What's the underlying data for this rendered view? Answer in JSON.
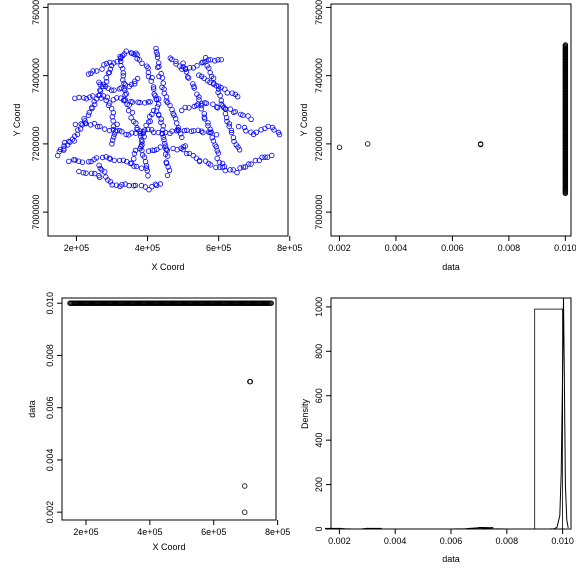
{
  "chart_data": [
    {
      "type": "scatter",
      "xlabel": "X Coord",
      "ylabel": "Y Coord",
      "xticks": [
        200000,
        400000,
        600000,
        800000
      ],
      "xtick_labels": [
        "2e+05",
        "4e+05",
        "6e+05",
        "8e+05"
      ],
      "yticks": [
        7000000,
        7200000,
        7400000,
        7600000
      ],
      "ytick_labels": [
        "7000000",
        "7200000",
        "7400000",
        "7600000"
      ],
      "xlim": [
        120000,
        795000
      ],
      "ylim": [
        6930000,
        7610000
      ],
      "point_color": "#0000ff",
      "description_points": "~700 station locations forming a network of roughly north–south and east–west lines across X 150000–780000, Y 7060000–7490000",
      "x_range_data": [
        150000,
        780000
      ],
      "y_range_data": [
        7060000,
        7490000
      ]
    },
    {
      "type": "scatter",
      "xlabel": "data",
      "ylabel": "Y Coord",
      "xticks": [
        0.002,
        0.004,
        0.006,
        0.008,
        0.01
      ],
      "xtick_labels": [
        "0.002",
        "0.004",
        "0.006",
        "0.008",
        "0.010"
      ],
      "yticks": [
        7000000,
        7200000,
        7400000,
        7600000
      ],
      "ytick_labels": [
        "7000000",
        "7200000",
        "7400000",
        "7600000"
      ],
      "xlim": [
        0.0017,
        0.0102
      ],
      "ylim": [
        6930000,
        7610000
      ],
      "point_color": "#000000",
      "points": [
        {
          "x": 0.002,
          "y": 7190000
        },
        {
          "x": 0.003,
          "y": 7200000
        },
        {
          "x": 0.007,
          "y": 7200000
        },
        {
          "x": 0.007,
          "y": 7198000
        }
      ],
      "main_cluster": {
        "x": 0.01,
        "y_range": [
          7055000,
          7490000
        ]
      }
    },
    {
      "type": "scatter",
      "xlabel": "X Coord",
      "ylabel": "data",
      "xticks": [
        200000,
        400000,
        600000,
        800000
      ],
      "xtick_labels": [
        "2e+05",
        "4e+05",
        "6e+05",
        "8e+05"
      ],
      "yticks": [
        0.002,
        0.004,
        0.006,
        0.008,
        0.01
      ],
      "ytick_labels": [
        "0.002",
        "0.004",
        "0.006",
        "0.008",
        "0.010"
      ],
      "xlim": [
        125000,
        795000
      ],
      "ylim": [
        0.0017,
        0.0102
      ],
      "point_color": "#000000",
      "points": [
        {
          "x": 697000,
          "y": 0.002
        },
        {
          "x": 697000,
          "y": 0.003
        },
        {
          "x": 713000,
          "y": 0.007
        },
        {
          "x": 715000,
          "y": 0.007
        }
      ],
      "main_cluster": {
        "y": 0.01,
        "x_range": [
          150000,
          780000
        ]
      }
    },
    {
      "type": "histogram",
      "xlabel": "data",
      "ylabel": "Density",
      "xticks": [
        0.002,
        0.004,
        0.006,
        0.008,
        0.01
      ],
      "xtick_labels": [
        "0.002",
        "0.004",
        "0.006",
        "0.008",
        "0.010"
      ],
      "yticks": [
        0,
        200,
        400,
        600,
        800,
        1000
      ],
      "ytick_labels": [
        "0",
        "200",
        "400",
        "600",
        "800",
        "1000"
      ],
      "xlim": [
        0.0017,
        0.0103
      ],
      "ylim": [
        0,
        1040
      ],
      "bins": [
        {
          "x0": 0.0015,
          "x1": 0.002,
          "density": 3
        },
        {
          "x0": 0.003,
          "x1": 0.0035,
          "density": 3
        },
        {
          "x0": 0.007,
          "x1": 0.0075,
          "density": 7
        },
        {
          "x0": 0.009,
          "x1": 0.01,
          "density": 990
        }
      ],
      "density_curve": [
        [
          0.0017,
          0.0
        ],
        [
          0.0019,
          1.0
        ],
        [
          0.002,
          2.5
        ],
        [
          0.0022,
          1.0
        ],
        [
          0.0025,
          0.0
        ],
        [
          0.0028,
          0.5
        ],
        [
          0.003,
          2.5
        ],
        [
          0.0033,
          0.5
        ],
        [
          0.0036,
          0.0
        ],
        [
          0.006,
          0.0
        ],
        [
          0.0065,
          1.0
        ],
        [
          0.0068,
          4.0
        ],
        [
          0.007,
          6.0
        ],
        [
          0.0072,
          4.0
        ],
        [
          0.0075,
          1.0
        ],
        [
          0.008,
          0.0
        ],
        [
          0.0095,
          0.0
        ],
        [
          0.0097,
          1
        ],
        [
          0.0098,
          8
        ],
        [
          0.0099,
          60
        ],
        [
          0.00995,
          250
        ],
        [
          0.01,
          700
        ],
        [
          0.01003,
          1100
        ],
        [
          0.01006,
          700
        ],
        [
          0.0101,
          200
        ],
        [
          0.01015,
          40
        ],
        [
          0.0102,
          5
        ]
      ]
    }
  ]
}
